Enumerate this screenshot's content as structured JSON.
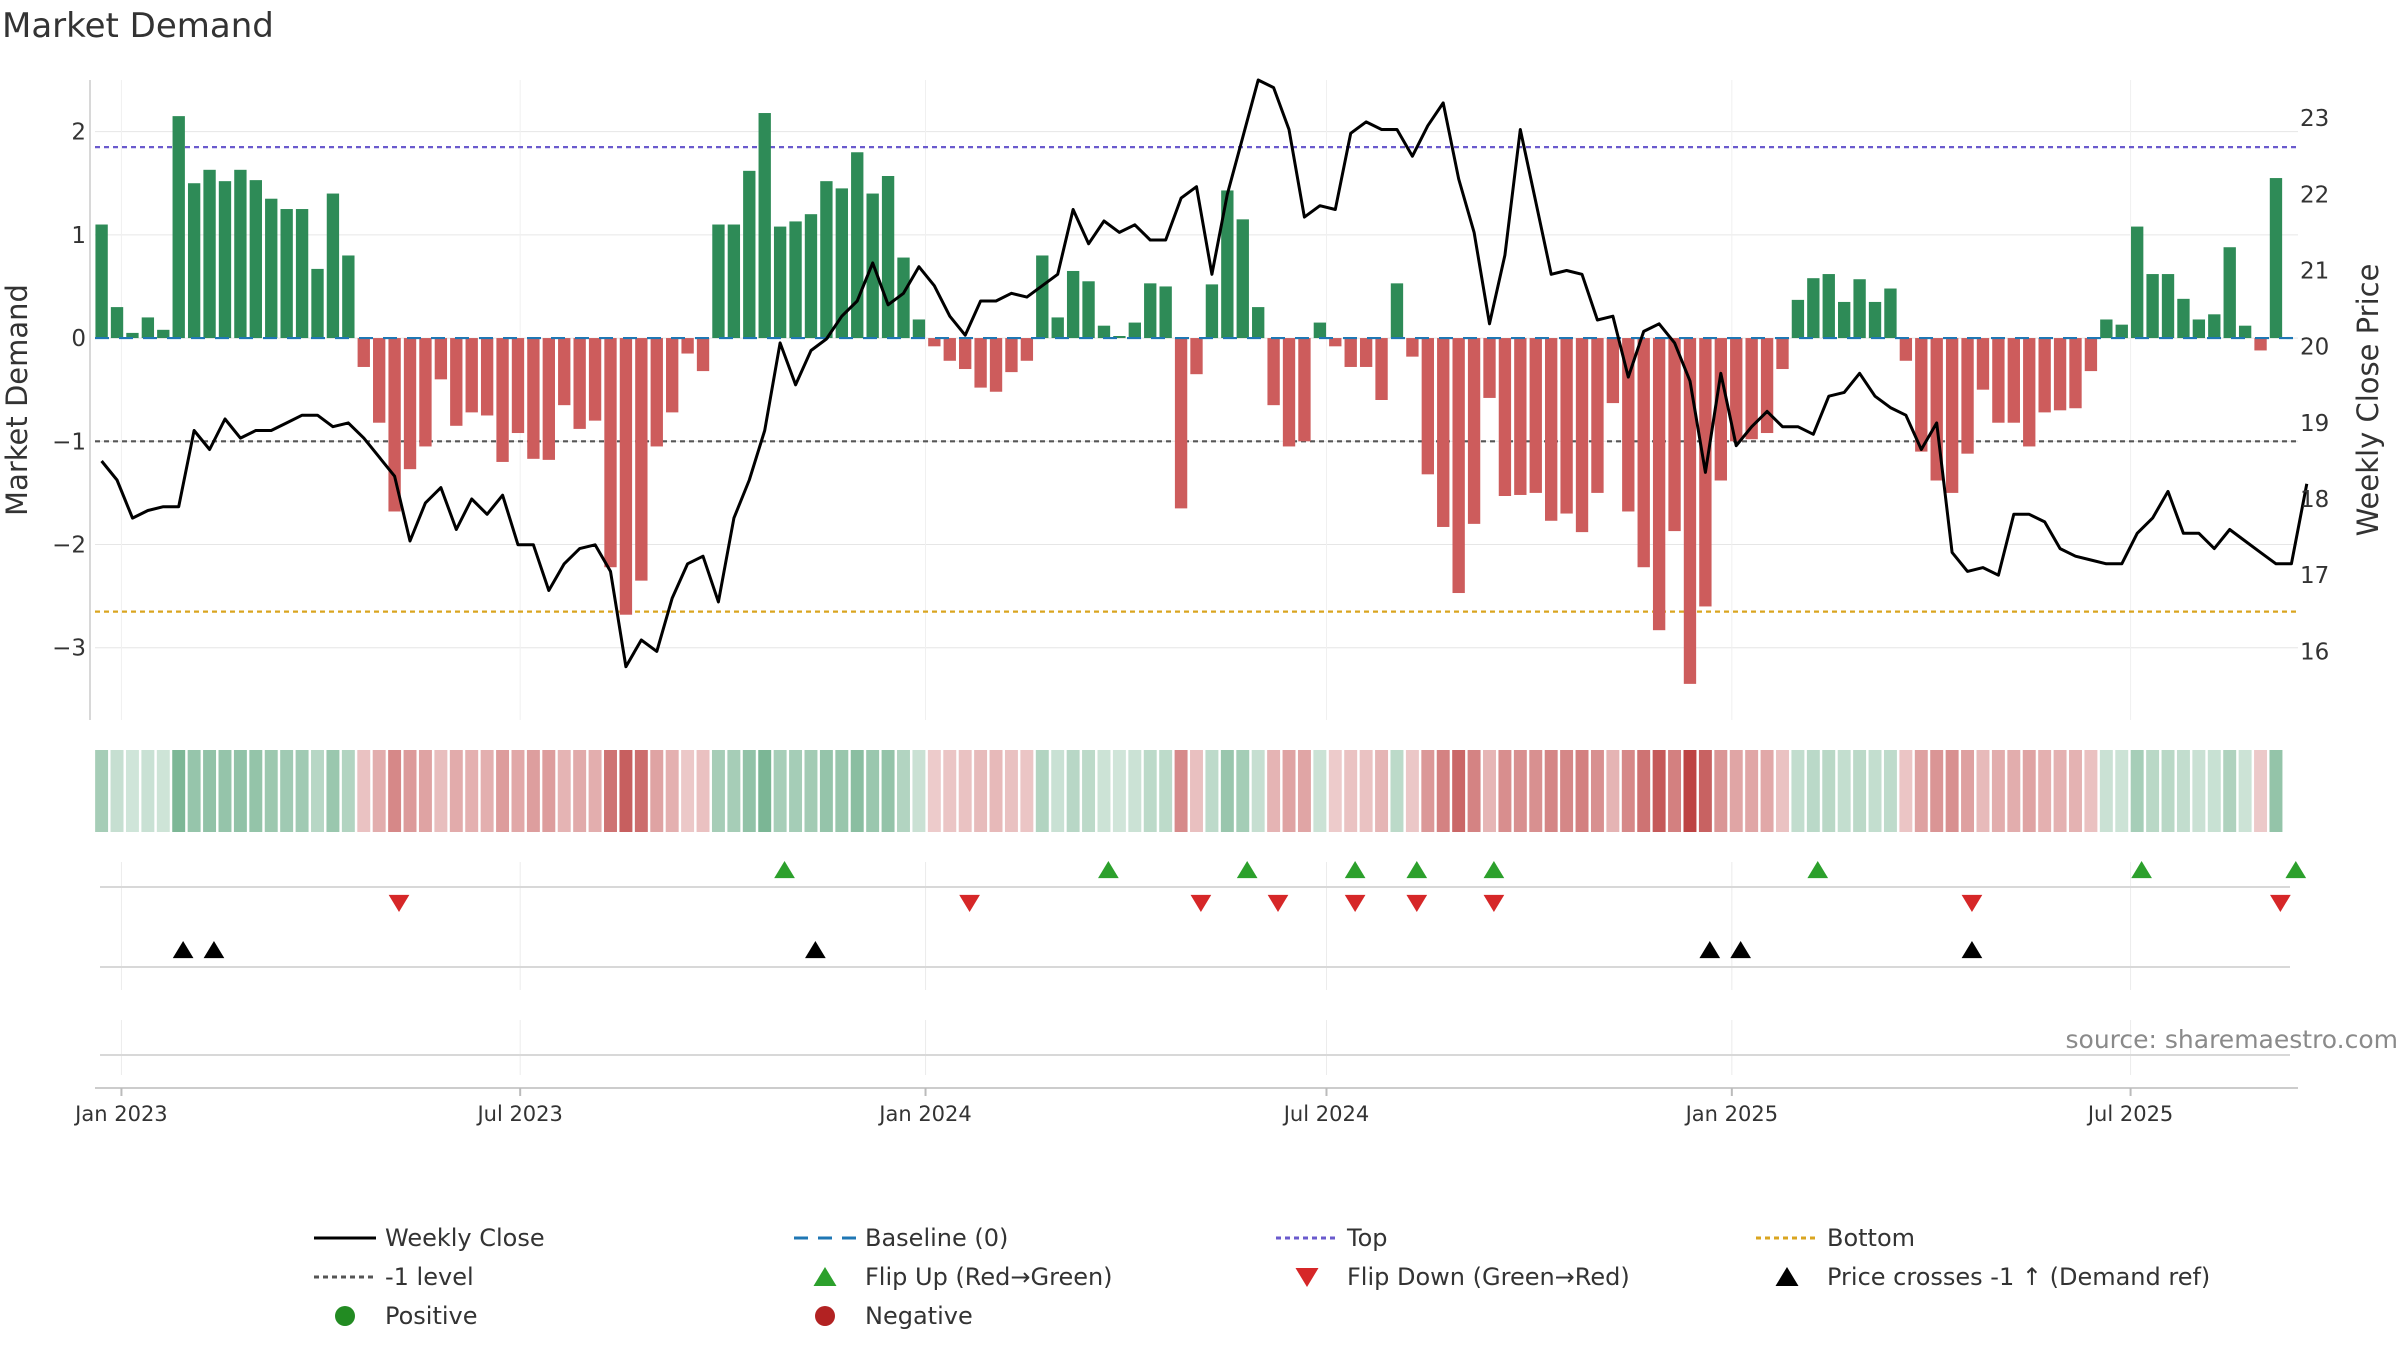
{
  "chart_data": {
    "type": "bar",
    "title": "Market Demand",
    "ylabel": "Market Demand",
    "y2label": "Weekly Close Price",
    "ylim": [
      -3.7,
      2.5
    ],
    "y2lim": [
      15.1,
      23.5
    ],
    "yticks": [
      2,
      1,
      0,
      -1,
      -2,
      -3
    ],
    "ytick_labels": [
      "2",
      "1",
      "0",
      "−1",
      "−2",
      "−3"
    ],
    "y2ticks": [
      23,
      22,
      21,
      20,
      19,
      18,
      17,
      16
    ],
    "y2tick_labels": [
      "23",
      "22",
      "21",
      "20",
      "19",
      "18",
      "17",
      "16"
    ],
    "x_start": "2022-12-20",
    "x_end": "2025-09-15",
    "week_start": "2022-12-23",
    "xticks": [
      {
        "date": "2023-01-01",
        "label": "Jan 2023"
      },
      {
        "date": "2023-07-01",
        "label": "Jul 2023"
      },
      {
        "date": "2024-01-01",
        "label": "Jan 2024"
      },
      {
        "date": "2024-07-01",
        "label": "Jul 2024"
      },
      {
        "date": "2025-01-01",
        "label": "Jan 2025"
      },
      {
        "date": "2025-07-01",
        "label": "Jul 2025"
      }
    ],
    "levels": {
      "top": 1.85,
      "bottom": -2.65,
      "minus_one": -1.0,
      "baseline": 0
    },
    "series": [
      {
        "name": "Market Demand",
        "type": "bar",
        "values": [
          1.1,
          0.3,
          0.05,
          0.2,
          0.08,
          2.15,
          1.5,
          1.63,
          1.52,
          1.63,
          1.53,
          1.35,
          1.25,
          1.25,
          0.67,
          1.4,
          0.8,
          -0.28,
          -0.82,
          -1.68,
          -1.27,
          -1.05,
          -0.4,
          -0.85,
          -0.72,
          -0.75,
          -1.2,
          -0.92,
          -1.17,
          -1.18,
          -0.65,
          -0.88,
          -0.8,
          -2.22,
          -2.68,
          -2.35,
          -1.05,
          -0.72,
          -0.15,
          -0.32,
          1.1,
          1.1,
          1.62,
          2.18,
          1.08,
          1.13,
          1.2,
          1.52,
          1.45,
          1.8,
          1.4,
          1.57,
          0.78,
          0.18,
          -0.08,
          -0.22,
          -0.3,
          -0.48,
          -0.52,
          -0.33,
          -0.22,
          0.8,
          0.2,
          0.65,
          0.55,
          0.12,
          0.02,
          0.15,
          0.53,
          0.5,
          -1.65,
          -0.35,
          0.52,
          1.43,
          1.15,
          0.3,
          -0.65,
          -1.05,
          -1.0,
          0.15,
          -0.08,
          -0.28,
          -0.28,
          -0.6,
          0.53,
          -0.18,
          -1.32,
          -1.83,
          -2.47,
          -1.8,
          -0.58,
          -1.53,
          -1.52,
          -1.5,
          -1.77,
          -1.7,
          -1.88,
          -1.5,
          -0.63,
          -1.68,
          -2.22,
          -2.83,
          -1.87,
          -3.35,
          -2.6,
          -1.38,
          -1.0,
          -0.98,
          -0.92,
          -0.3,
          0.37,
          0.58,
          0.62,
          0.35,
          0.57,
          0.35,
          0.48,
          -0.22,
          -1.1,
          -1.38,
          -1.5,
          -1.12,
          -0.5,
          -0.82,
          -0.82,
          -1.05,
          -0.72,
          -0.7,
          -0.68,
          -0.32,
          0.18,
          0.13,
          1.08,
          0.62,
          0.62,
          0.38,
          0.18,
          0.23,
          0.88,
          0.12,
          -0.12,
          1.55
        ]
      },
      {
        "name": "Weekly Close",
        "type": "line",
        "values": [
          18.5,
          18.25,
          17.75,
          17.85,
          17.9,
          17.9,
          18.9,
          18.65,
          19.05,
          18.8,
          18.9,
          18.9,
          19.0,
          19.1,
          19.1,
          18.95,
          19.0,
          18.8,
          18.55,
          18.3,
          17.45,
          17.95,
          18.15,
          17.6,
          18.0,
          17.8,
          18.05,
          17.4,
          17.4,
          16.8,
          17.15,
          17.35,
          17.4,
          17.05,
          15.8,
          16.15,
          16.0,
          16.7,
          17.15,
          17.25,
          16.65,
          17.75,
          18.25,
          18.9,
          20.05,
          19.5,
          19.95,
          20.1,
          20.4,
          20.6,
          21.1,
          20.55,
          20.7,
          21.05,
          20.8,
          20.4,
          20.15,
          20.6,
          20.6,
          20.7,
          20.65,
          20.8,
          20.95,
          21.8,
          21.35,
          21.65,
          21.5,
          21.6,
          21.4,
          21.4,
          21.95,
          22.1,
          20.95,
          22.0,
          22.75,
          23.5,
          23.4,
          22.85,
          21.7,
          21.85,
          21.8,
          22.8,
          22.95,
          22.85,
          22.85,
          22.5,
          22.9,
          23.2,
          22.2,
          21.5,
          20.3,
          21.2,
          22.85,
          21.9,
          20.95,
          21.0,
          20.95,
          20.35,
          20.4,
          19.6,
          20.2,
          20.3,
          20.05,
          19.55,
          18.35,
          19.65,
          18.7,
          18.95,
          19.15,
          18.95,
          18.95,
          18.85,
          19.35,
          19.4,
          19.65,
          19.35,
          19.2,
          19.1,
          18.65,
          19.0,
          17.3,
          17.05,
          17.1,
          17.0,
          17.8,
          17.8,
          17.7,
          17.35,
          17.25,
          17.2,
          17.15,
          17.15,
          17.55,
          17.75,
          18.1,
          17.55,
          17.55,
          17.35,
          17.6,
          17.45,
          17.3,
          17.15,
          17.15,
          18.2
        ]
      }
    ],
    "flip_up_dates": [
      "2023-10-29",
      "2024-03-24",
      "2024-05-26",
      "2024-07-14",
      "2024-08-11",
      "2024-09-15",
      "2025-02-09",
      "2025-07-06",
      "2025-09-14"
    ],
    "flip_down_dates": [
      "2023-05-07",
      "2024-01-21",
      "2024-05-05",
      "2024-06-09",
      "2024-07-14",
      "2024-08-11",
      "2024-09-15",
      "2025-04-20",
      "2025-09-07"
    ],
    "cross_dates": [
      "2023-01-29",
      "2023-02-12",
      "2023-11-12",
      "2024-12-22",
      "2025-01-05",
      "2025-04-20"
    ],
    "legend_position": "bottom",
    "legend": [
      {
        "label": "Weekly Close",
        "marker": "line-solid",
        "color": "#000000"
      },
      {
        "label": "Baseline (0)",
        "marker": "line-dashed",
        "color": "#1f77b4"
      },
      {
        "label": "Top",
        "marker": "line-dotted",
        "color": "#6a5acd"
      },
      {
        "label": "Bottom",
        "marker": "line-dotted",
        "color": "#daa520"
      },
      {
        "label": "-1 level",
        "marker": "line-dotted",
        "color": "#555555"
      },
      {
        "label": "Flip Up (Red→Green)",
        "marker": "tri-up",
        "color": "#2ca02c"
      },
      {
        "label": "Flip Down (Green→Red)",
        "marker": "tri-down",
        "color": "#d62728"
      },
      {
        "label": "Price crosses -1 ↑ (Demand ref)",
        "marker": "tri-up",
        "color": "#000000"
      },
      {
        "label": "Positive",
        "marker": "dot",
        "color": "#228b22"
      },
      {
        "label": "Negative",
        "marker": "dot",
        "color": "#b22222"
      }
    ],
    "source": "source: sharemaestro.com",
    "colors": {
      "positive_bar": "#2e8b57",
      "negative_bar": "#cd5c5c",
      "heat_pos": "#2e8b57",
      "heat_neg": "#b22222",
      "grid": "#e6e6e6",
      "axis": "#cccccc"
    }
  }
}
